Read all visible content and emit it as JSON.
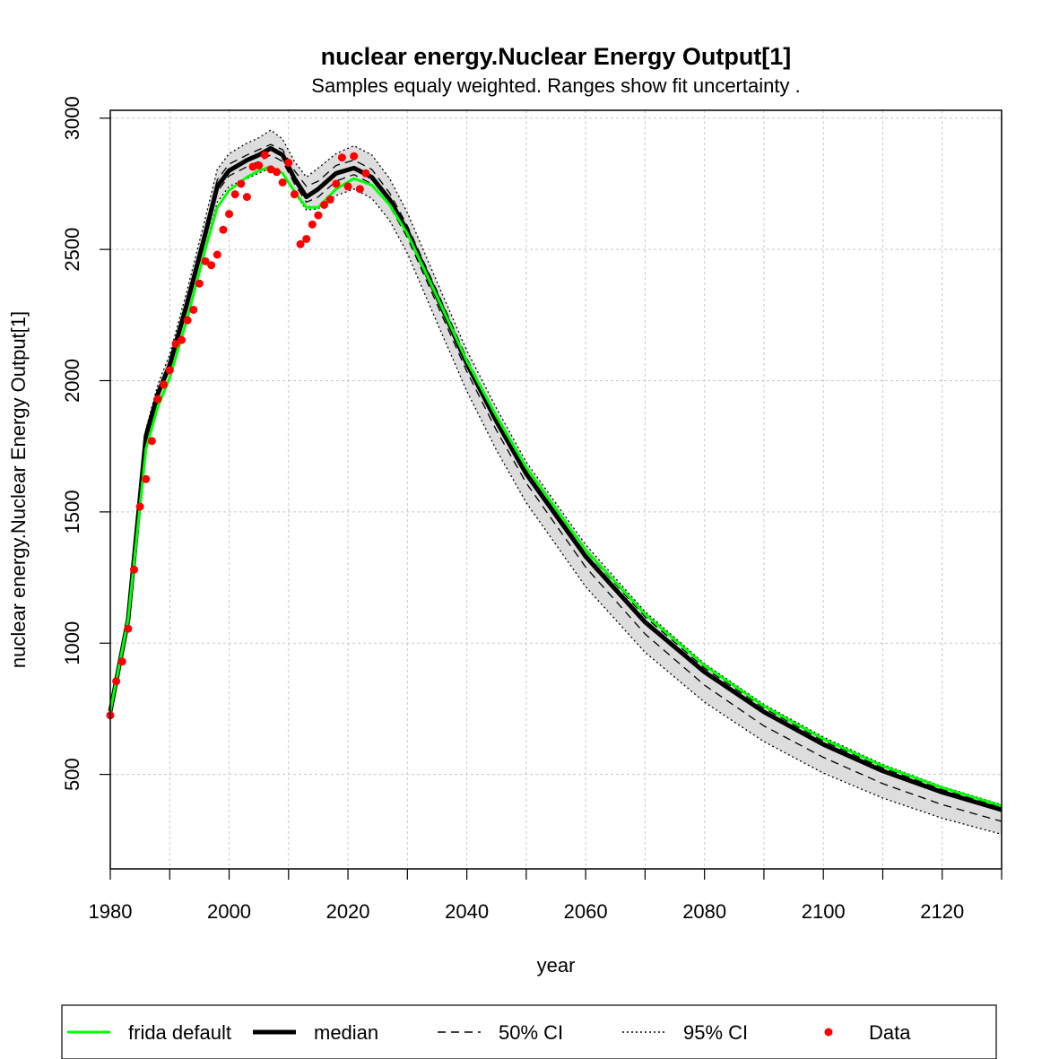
{
  "chart_data": {
    "type": "line",
    "title": "nuclear energy.Nuclear Energy Output[1]",
    "subtitle": "Samples equaly weighted. Ranges show  fit uncertainty .",
    "xlabel": "year",
    "ylabel": "nuclear energy.Nuclear Energy Output[1]",
    "xlim": [
      1980,
      2130
    ],
    "ylim": [
      140,
      3030
    ],
    "x_ticks": [
      1980,
      2000,
      2020,
      2040,
      2060,
      2080,
      2100,
      2120
    ],
    "x_minor_ticks": [
      1990,
      2010,
      2030,
      2050,
      2070,
      2090,
      2110,
      2130
    ],
    "y_ticks": [
      500,
      1000,
      1500,
      2000,
      2500,
      3000
    ],
    "grid": true,
    "legend_position": "bottom",
    "legend": [
      {
        "label": "frida default",
        "style": "green-line"
      },
      {
        "label": "median",
        "style": "thick-black-line"
      },
      {
        "label": "50% CI",
        "style": "dashed-line"
      },
      {
        "label": "95% CI",
        "style": "dotted-line"
      },
      {
        "label": "Data",
        "style": "red-point"
      }
    ],
    "colors": {
      "frida_default": "#00ff00",
      "median": "#000000",
      "ci_band": "#dddddd",
      "data": "#ff0000",
      "grid": "#c8c8c8"
    },
    "x": [
      1980,
      1983,
      1986,
      1988,
      1990,
      1993,
      1996,
      1998,
      2000,
      2003,
      2005,
      2007,
      2009,
      2011,
      2013,
      2015,
      2018,
      2021,
      2024,
      2027,
      2030,
      2035,
      2040,
      2045,
      2050,
      2060,
      2070,
      2080,
      2090,
      2100,
      2110,
      2120,
      2130
    ],
    "series": [
      {
        "name": "frida default",
        "values": [
          740,
          1090,
          1740,
          1900,
          2010,
          2240,
          2500,
          2660,
          2725,
          2775,
          2800,
          2815,
          2790,
          2720,
          2660,
          2660,
          2730,
          2770,
          2745,
          2670,
          2560,
          2320,
          2075,
          1865,
          1670,
          1355,
          1110,
          915,
          760,
          635,
          532,
          450,
          380
        ]
      },
      {
        "name": "median",
        "values": [
          740,
          1090,
          1790,
          1950,
          2060,
          2300,
          2560,
          2740,
          2800,
          2840,
          2860,
          2885,
          2860,
          2770,
          2700,
          2730,
          2790,
          2810,
          2775,
          2690,
          2570,
          2320,
          2065,
          1845,
          1645,
          1330,
          1080,
          890,
          738,
          614,
          513,
          432,
          365
        ]
      },
      {
        "name": "50% CI upper",
        "values": [
          740,
          1095,
          1800,
          1965,
          2075,
          2320,
          2585,
          2765,
          2825,
          2860,
          2880,
          2900,
          2880,
          2800,
          2740,
          2760,
          2820,
          2840,
          2805,
          2715,
          2590,
          2340,
          2085,
          1865,
          1665,
          1350,
          1100,
          905,
          752,
          627,
          525,
          442,
          374
        ]
      },
      {
        "name": "50% CI lower",
        "values": [
          735,
          1085,
          1780,
          1935,
          2045,
          2285,
          2545,
          2720,
          2780,
          2815,
          2835,
          2860,
          2835,
          2750,
          2680,
          2700,
          2760,
          2785,
          2750,
          2665,
          2545,
          2290,
          2035,
          1810,
          1610,
          1290,
          1035,
          840,
          685,
          565,
          465,
          385,
          321
        ]
      },
      {
        "name": "95% CI upper",
        "values": [
          745,
          1100,
          1815,
          1985,
          2100,
          2350,
          2620,
          2805,
          2865,
          2905,
          2925,
          2955,
          2920,
          2835,
          2775,
          2810,
          2865,
          2895,
          2860,
          2770,
          2640,
          2375,
          2115,
          1895,
          1690,
          1375,
          1120,
          922,
          767,
          642,
          538,
          454,
          385
        ]
      },
      {
        "name": "95% CI lower",
        "values": [
          730,
          1080,
          1765,
          1910,
          2015,
          2250,
          2510,
          2680,
          2740,
          2770,
          2790,
          2810,
          2790,
          2715,
          2650,
          2655,
          2705,
          2730,
          2695,
          2610,
          2485,
          2220,
          1960,
          1735,
          1535,
          1215,
          965,
          775,
          625,
          505,
          410,
          333,
          272
        ]
      }
    ],
    "data_points": {
      "name": "Data",
      "x": [
        1980,
        1981,
        1982,
        1983,
        1984,
        1985,
        1986,
        1987,
        1988,
        1989,
        1990,
        1991,
        1992,
        1993,
        1994,
        1995,
        1996,
        1997,
        1998,
        1999,
        2000,
        2001,
        2002,
        2003,
        2004,
        2005,
        2006,
        2007,
        2008,
        2009,
        2010,
        2011,
        2012,
        2013,
        2014,
        2015,
        2016,
        2017,
        2018,
        2019,
        2020,
        2021,
        2022,
        2023
      ],
      "y": [
        725,
        855,
        930,
        1055,
        1280,
        1520,
        1625,
        1770,
        1930,
        1985,
        2040,
        2140,
        2155,
        2230,
        2270,
        2370,
        2455,
        2440,
        2480,
        2575,
        2635,
        2710,
        2750,
        2700,
        2815,
        2820,
        2860,
        2805,
        2795,
        2755,
        2830,
        2710,
        2520,
        2540,
        2595,
        2630,
        2670,
        2690,
        2750,
        2850,
        2740,
        2855,
        2730,
        2790
      ]
    }
  }
}
